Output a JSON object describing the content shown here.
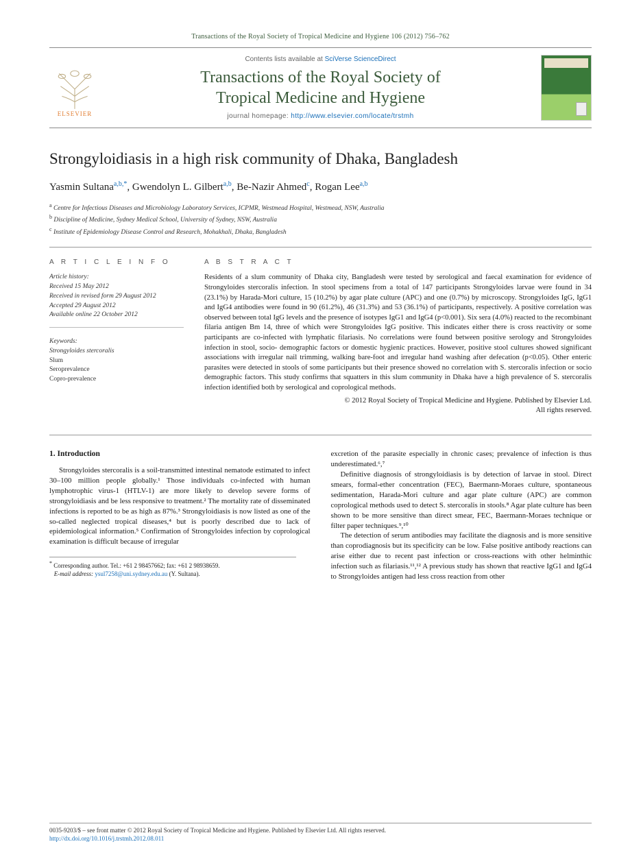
{
  "colors": {
    "accent_green": "#3a5a3a",
    "link_blue": "#1a6fb8",
    "elsevier_orange": "#e07b2e",
    "rule_gray": "#999999",
    "text": "#1a1a1a",
    "background": "#ffffff"
  },
  "typography": {
    "body_family": "Times New Roman / Georgia serif",
    "journal_family": "Palatino-like serif",
    "body_fontsize_pt": 8.5,
    "title_fontsize_pt": 17,
    "journal_fontsize_pt": 18
  },
  "header": {
    "journal_reference": "Transactions of the Royal Society of Tropical Medicine and Hygiene 106 (2012) 756–762",
    "contents_prefix": "Contents lists available at ",
    "contents_link": "SciVerse ScienceDirect",
    "journal_name_line1": "Transactions of the Royal Society of",
    "journal_name_line2": "Tropical Medicine and Hygiene",
    "homepage_prefix": "journal homepage: ",
    "homepage_url": "http://www.elsevier.com/locate/trstmh",
    "publisher_logo_label": "ELSEVIER"
  },
  "article": {
    "title": "Strongyloidiasis in a high risk community of Dhaka, Bangladesh",
    "authors_html": "Yasmin Sultana<sup>a,b,*</sup>, Gwendolyn L. Gilbert<sup>a,b</sup>, Be-Nazir Ahmed<sup>c</sup>, Rogan Lee<sup>a,b</sup>",
    "affiliations": [
      {
        "tag": "a",
        "text": "Centre for Infectious Diseases and Microbiology Laboratory Services, ICPMR, Westmead Hospital, Westmead, NSW, Australia"
      },
      {
        "tag": "b",
        "text": "Discipline of Medicine, Sydney Medical School, University of Sydney, NSW, Australia"
      },
      {
        "tag": "c",
        "text": "Institute of Epidemiology Disease Control and Research, Mohakhali, Dhaka, Bangladesh"
      }
    ]
  },
  "article_info": {
    "label": "A R T I C L E   I N F O",
    "history_label": "Article history:",
    "history": [
      "Received 15 May 2012",
      "Received in revised form 29 August 2012",
      "Accepted 29 August 2012",
      "Available online 22 October 2012"
    ],
    "keywords_label": "Keywords:",
    "keywords": [
      {
        "text": "Strongyloides stercoralis",
        "italic": true
      },
      {
        "text": "Slum",
        "italic": false
      },
      {
        "text": "Seroprevalence",
        "italic": false
      },
      {
        "text": "Copro-prevalence",
        "italic": false
      }
    ]
  },
  "abstract": {
    "label": "A B S T R A C T",
    "text": "Residents of a slum community of Dhaka city, Bangladesh were tested by serological and faecal examination for evidence of Strongyloides stercoralis infection. In stool specimens from a total of 147 participants Strongyloides larvae were found in 34 (23.1%) by Harada-Mori culture, 15 (10.2%) by agar plate culture (APC) and one (0.7%) by microscopy. Strongyloides IgG, IgG1 and IgG4 antibodies were found in 90 (61.2%), 46 (31.3%) and 53 (36.1%) of participants, respectively. A positive correlation was observed between total IgG levels and the presence of isotypes IgG1 and IgG4 (p<0.001). Six sera (4.0%) reacted to the recombinant filaria antigen Bm 14, three of which were Strongyloides IgG positive. This indicates either there is cross reactivity or some participants are co-infected with lymphatic filariasis. No correlations were found between positive serology and Strongyloides infection in stool, socio- demographic factors or domestic hygienic practices. However, positive stool cultures showed significant associations with irregular nail trimming, walking bare-foot and irregular hand washing after defecation (p<0.05). Other enteric parasites were detected in stools of some participants but their presence showed no correlation with S. stercoralis infection or socio demographic factors. This study confirms that squatters in this slum community in Dhaka have a high prevalence of S. stercoralis infection identified both by serological and coprological methods.",
    "copyright_line1": "© 2012 Royal Society of Tropical Medicine and Hygiene. Published by Elsevier Ltd.",
    "copyright_line2": "All rights reserved."
  },
  "body": {
    "section_number": "1.",
    "section_title": "Introduction",
    "para1": "Strongyloides stercoralis is a soil-transmitted intestinal nematode estimated to infect 30–100 million people globally.¹ Those individuals co-infected with human lymphotrophic virus-1 (HTLV-1) are more likely to develop severe forms of strongyloidiasis and be less responsive to treatment.² The mortality rate of disseminated infections is reported to be as high as 87%.³ Strongyloidiasis is now listed as one of the so-called neglected tropical diseases,⁴ but is poorly described due to lack of epidemiological information.⁵ Confirmation of Strongyloides infection by coprological examination is difficult because of irregular",
    "para2": "excretion of the parasite especially in chronic cases; prevalence of infection is thus underestimated.⁶,⁷",
    "para3": "Definitive diagnosis of strongyloidiasis is by detection of larvae in stool. Direct smears, formal-ether concentration (FEC), Baermann-Moraes culture, spontaneous sedimentation, Harada-Mori culture and agar plate culture (APC) are common coprological methods used to detect S. stercoralis in stools.⁸ Agar plate culture has been shown to be more sensitive than direct smear, FEC, Baermann-Moraes technique or filter paper techniques.⁹,¹⁰",
    "para4": "The detection of serum antibodies may facilitate the diagnosis and is more sensitive than coprodiagnosis but its specificity can be low. False positive antibody reactions can arise either due to recent past infection or cross-reactions with other helminthic infection such as filariasis.¹¹,¹² A previous study has shown that reactive IgG1 and IgG4 to Strongyloides antigen had less cross reaction from other"
  },
  "corresponding": {
    "star": "*",
    "label": "Corresponding author. ",
    "tel": "Tel.: +61 2 98457662; fax: +61 2 98938659.",
    "email_label": "E-mail address: ",
    "email": "ysul7258@uni.sydney.edu.au",
    "email_suffix": " (Y. Sultana)."
  },
  "footer": {
    "issn_line": "0035-9203/$ – see front matter © 2012 Royal Society of Tropical Medicine and Hygiene. Published by Elsevier Ltd. All rights reserved.",
    "doi": "http://dx.doi.org/10.1016/j.trstmh.2012.08.011"
  }
}
